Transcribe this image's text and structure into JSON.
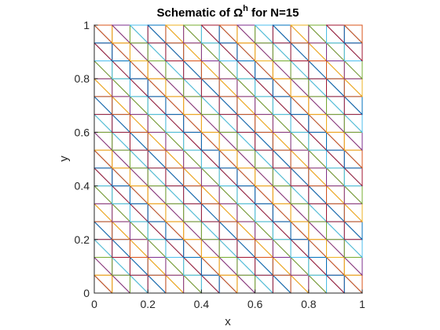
{
  "chart_data": {
    "type": "mesh",
    "title_prefix": "Schematic of ",
    "title_symbol": "Ω",
    "title_superscript": "h",
    "title_suffix": " for N=15",
    "xlabel": "x",
    "ylabel": "y",
    "N": 15,
    "xlim": [
      0,
      1
    ],
    "ylim": [
      0,
      1
    ],
    "xticks": [
      0,
      0.2,
      0.4,
      0.6,
      0.8,
      1
    ],
    "yticks": [
      0,
      0.2,
      0.4,
      0.6,
      0.8,
      1
    ],
    "xtick_labels": [
      "0",
      "0.2",
      "0.4",
      "0.6",
      "0.8",
      "1"
    ],
    "ytick_labels": [
      "0",
      "0.2",
      "0.4",
      "0.6",
      "0.8",
      "1"
    ],
    "triangulation": "each square split by its (0,1)-(1,0) diagonal",
    "grid": false,
    "colors": [
      "#0072BD",
      "#D95319",
      "#EDB120",
      "#7E2F8E",
      "#77AC30",
      "#4DBEEE",
      "#A2142F"
    ]
  }
}
